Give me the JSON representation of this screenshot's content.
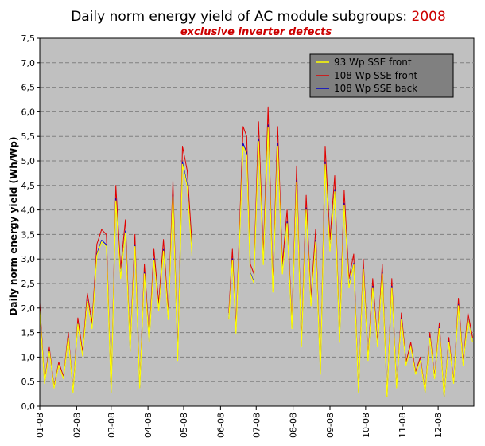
{
  "chart_data": {
    "type": "line",
    "title": "Daily norm energy yield of AC module subgroups: ",
    "title_year": "2008",
    "subtitle": "exclusive inverter defects",
    "ylabel": "Daily norm energy yield (Wh/Wp)",
    "xlabel": "",
    "ylim": [
      0,
      7.5
    ],
    "yticks": [
      "0,0",
      "0,5",
      "1,0",
      "1,5",
      "2,0",
      "2,5",
      "3,0",
      "3,5",
      "4,0",
      "4,5",
      "5,0",
      "5,5",
      "6,0",
      "6,5",
      "7,0",
      "7,5"
    ],
    "xticks": [
      "01-08",
      "02-08",
      "03-08",
      "04-08",
      "05-08",
      "06-08",
      "07-08",
      "08-08",
      "09-08",
      "10-08",
      "11-08",
      "12-08"
    ],
    "grid": true,
    "legend_position": "top-right",
    "colors": {
      "plot_bg": "#c0c0c0",
      "legend_bg": "#808080",
      "grid": "#808080"
    },
    "series": [
      {
        "name": "93 Wp SSE front",
        "color": "#ffff00",
        "scale": 0.93
      },
      {
        "name": "108 Wp SSE front",
        "color": "#e00000",
        "scale": 1.0
      },
      {
        "name": "108 Wp SSE back",
        "color": "#0000cc",
        "scale": 0.94
      }
    ],
    "x": [
      1,
      5,
      9,
      13,
      17,
      21,
      25,
      29,
      33,
      37,
      41,
      45,
      49,
      53,
      57,
      61,
      65,
      69,
      73,
      77,
      81,
      85,
      89,
      93,
      97,
      101,
      105,
      109,
      113,
      117,
      121,
      125,
      129,
      160,
      163,
      166,
      172,
      175,
      178,
      181,
      185,
      189,
      193,
      197,
      201,
      205,
      209,
      213,
      217,
      221,
      225,
      229,
      233,
      237,
      241,
      245,
      249,
      253,
      257,
      261,
      265,
      269,
      273,
      277,
      281,
      285,
      289,
      293,
      297,
      301,
      305,
      309,
      313,
      317,
      321,
      325,
      329,
      333,
      337,
      341,
      345,
      349,
      353,
      357,
      361,
      365
    ],
    "values": [
      2.1,
      0.5,
      1.2,
      0.4,
      0.9,
      0.6,
      1.5,
      0.3,
      1.8,
      1.1,
      2.3,
      1.7,
      3.3,
      3.6,
      3.5,
      0.3,
      4.5,
      2.8,
      3.8,
      1.2,
      3.5,
      0.4,
      2.9,
      1.4,
      3.2,
      2.1,
      3.4,
      1.9,
      4.6,
      1.0,
      5.3,
      4.8,
      3.3,
      1.9,
      3.2,
      1.6,
      5.7,
      5.5,
      2.9,
      2.7,
      5.8,
      3.1,
      6.1,
      2.5,
      5.7,
      2.9,
      4.0,
      1.7,
      4.9,
      1.3,
      4.3,
      2.2,
      3.6,
      0.7,
      5.3,
      3.4,
      4.7,
      1.4,
      4.4,
      2.6,
      3.1,
      0.3,
      3.0,
      1.0,
      2.6,
      1.3,
      2.9,
      0.2,
      2.6,
      0.4,
      1.9,
      0.9,
      1.3,
      0.7,
      1.0,
      0.3,
      1.5,
      0.6,
      1.7,
      0.2,
      1.4,
      0.5,
      2.2,
      0.9,
      1.9,
      1.4
    ]
  },
  "legend": {
    "items": [
      {
        "label": "93 Wp SSE front"
      },
      {
        "label": "108 Wp SSE front"
      },
      {
        "label": "108 Wp SSE back"
      }
    ]
  }
}
